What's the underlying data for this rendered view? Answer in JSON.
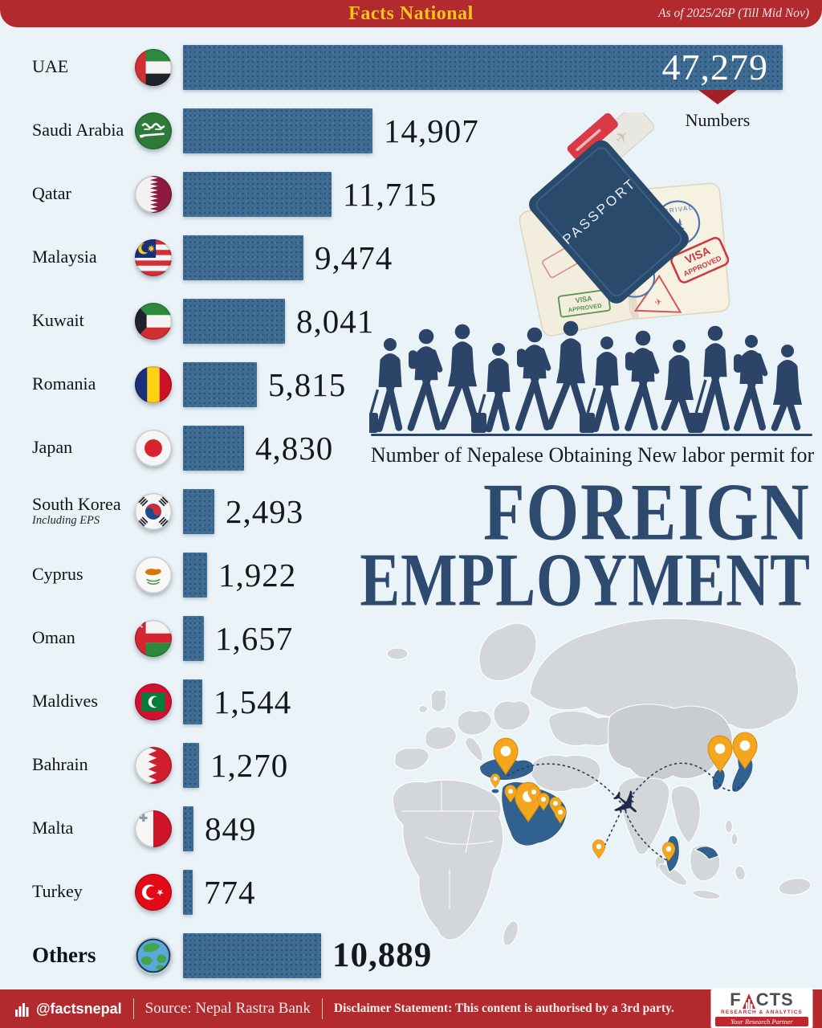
{
  "header": {
    "title": "Facts National",
    "date_note": "As of 2025/26P (Till Mid Nov)"
  },
  "headline": {
    "kicker": "Number of Nepalese Obtaining New labor permit for",
    "line1": "FOREIGN",
    "line2": "EMPLOYMENT"
  },
  "callout": {
    "arrow_label": "Numbers"
  },
  "chart_data": {
    "type": "bar",
    "orientation": "horizontal",
    "title": "Number of Nepalese Obtaining New labor permit for FOREIGN EMPLOYMENT",
    "unit_label": "Numbers",
    "max_value": 47279,
    "categories": [
      "UAE",
      "Saudi Arabia",
      "Qatar",
      "Malaysia",
      "Kuwait",
      "Romania",
      "Japan",
      "South Korea",
      "Cyprus",
      "Oman",
      "Maldives",
      "Bahrain",
      "Malta",
      "Turkey",
      "Others"
    ],
    "values": [
      47279,
      14907,
      11715,
      9474,
      8041,
      5815,
      4830,
      2493,
      1922,
      1657,
      1544,
      1270,
      849,
      774,
      10889
    ],
    "value_labels": [
      "47,279",
      "14,907",
      "11,715",
      "9,474",
      "8,041",
      "5,815",
      "4,830",
      "2,493",
      "1,922",
      "1,657",
      "1,544",
      "1,270",
      "849",
      "774",
      "10,889"
    ],
    "notes": {
      "South Korea": "Including EPS"
    },
    "rows": [
      {
        "label": "UAE",
        "flag": "uae",
        "value": 47279,
        "value_label": "47,279",
        "inside": true
      },
      {
        "label": "Saudi Arabia",
        "flag": "saudi",
        "value": 14907,
        "value_label": "14,907"
      },
      {
        "label": "Qatar",
        "flag": "qatar",
        "value": 11715,
        "value_label": "11,715"
      },
      {
        "label": "Malaysia",
        "flag": "malaysia",
        "value": 9474,
        "value_label": "9,474"
      },
      {
        "label": "Kuwait",
        "flag": "kuwait",
        "value": 8041,
        "value_label": "8,041"
      },
      {
        "label": "Romania",
        "flag": "romania",
        "value": 5815,
        "value_label": "5,815"
      },
      {
        "label": "Japan",
        "flag": "japan",
        "value": 4830,
        "value_label": "4,830"
      },
      {
        "label": "South Korea",
        "sublabel": "Including EPS",
        "flag": "south_korea",
        "value": 2493,
        "value_label": "2,493"
      },
      {
        "label": "Cyprus",
        "flag": "cyprus",
        "value": 1922,
        "value_label": "1,922"
      },
      {
        "label": "Oman",
        "flag": "oman",
        "value": 1657,
        "value_label": "1,657"
      },
      {
        "label": "Maldives",
        "flag": "maldives",
        "value": 1544,
        "value_label": "1,544"
      },
      {
        "label": "Bahrain",
        "flag": "bahrain",
        "value": 1270,
        "value_label": "1,270"
      },
      {
        "label": "Malta",
        "flag": "malta",
        "value": 849,
        "value_label": "849"
      },
      {
        "label": "Turkey",
        "flag": "turkey",
        "value": 774,
        "value_label": "774"
      },
      {
        "label": "Others",
        "flag": "globe",
        "value": 10889,
        "value_label": "10,889",
        "emphasis": true
      }
    ]
  },
  "passport": {
    "cover_label": "PASSPORT",
    "stamp_arrival": "ARRIVAL",
    "stamp_visa_word": "VISA",
    "stamp_approved_word": "APPROVED"
  },
  "footer": {
    "handle": "@factsnepal",
    "source": "Source: Nepal Rastra Bank",
    "disclaimer": "Disclaimer Statement: This content is authorised by a 3rd party.",
    "logo": {
      "word_left": "F",
      "word_right": "CTS",
      "sub": "RESEARCH & ANALYTICS",
      "tagline": "Your Research Partner"
    }
  },
  "colors": {
    "bar_blue": "#3d6b92",
    "accent_red": "#b2292e",
    "arrow_red": "#a42029",
    "navy": "#2e4a6e",
    "silhouette_navy": "#2c4468",
    "pin_orange": "#f4a71d",
    "gold": "#f6c51c",
    "map_land": "#d3d7d9",
    "map_highlight": "#31618e"
  }
}
